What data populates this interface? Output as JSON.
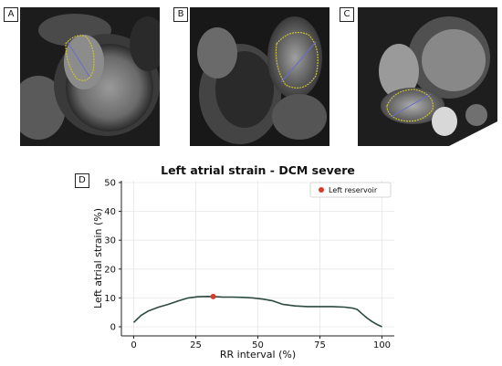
{
  "panels": {
    "a": "A",
    "b": "B",
    "c": "C",
    "d": "D"
  },
  "chart_data": {
    "type": "line",
    "title": "Left atrial strain - DCM severe",
    "xlabel": "RR interval (%)",
    "ylabel": "Left atrial strain (%)",
    "xlim": [
      0,
      100
    ],
    "ylim": [
      -2,
      51
    ],
    "xticks": [
      0,
      25,
      50,
      75,
      100
    ],
    "yticks": [
      0,
      10,
      20,
      30,
      40,
      50
    ],
    "grid": true,
    "legend_position": "top-right",
    "series": [
      {
        "kind": "line",
        "color": "#2d4a3e",
        "x": [
          0,
          3,
          6,
          10,
          14,
          18,
          22,
          26,
          30,
          33,
          36,
          40,
          44,
          48,
          52,
          56,
          60,
          65,
          70,
          75,
          80,
          85,
          88,
          90,
          92,
          94,
          96,
          98,
          100
        ],
        "y": [
          1.5,
          4.0,
          5.5,
          6.8,
          7.8,
          9.0,
          10.0,
          10.4,
          10.5,
          10.4,
          10.3,
          10.3,
          10.2,
          10.0,
          9.6,
          9.0,
          7.8,
          7.2,
          7.0,
          7.0,
          7.0,
          6.8,
          6.5,
          6.0,
          4.5,
          3.0,
          1.8,
          0.8,
          0.0
        ]
      },
      {
        "kind": "point",
        "name": "Left reservoir",
        "color": "#d93a2b",
        "x": [
          32
        ],
        "y": [
          10.5
        ]
      }
    ]
  }
}
